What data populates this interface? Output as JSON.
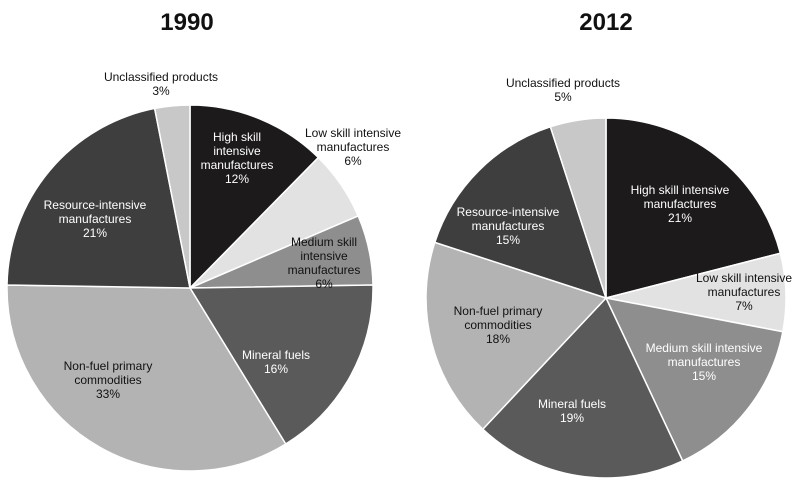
{
  "chart_data": [
    {
      "type": "pie",
      "title": "1990",
      "slices": [
        {
          "label": [
            "High skill",
            "intensive",
            "manufactures"
          ],
          "value": 12,
          "value_label": "12%",
          "color": "#1c1a1b",
          "text_color": "#ffffff"
        },
        {
          "label": [
            "Low skill intensive",
            "manufactures"
          ],
          "value": 6,
          "value_label": "6%",
          "color": "#e2e2e2",
          "text_color": "#111111"
        },
        {
          "label": [
            "Medium skill",
            "intensive",
            "manufactures"
          ],
          "value": 6,
          "value_label": "6%",
          "color": "#8e8e8e",
          "text_color": "#111111"
        },
        {
          "label": [
            "Mineral fuels"
          ],
          "value": 16,
          "value_label": "16%",
          "color": "#5a5a5a",
          "text_color": "#ffffff"
        },
        {
          "label": [
            "Non-fuel primary",
            "commodities"
          ],
          "value": 33,
          "value_label": "33%",
          "color": "#b3b3b3",
          "text_color": "#111111"
        },
        {
          "label": [
            "Resource-intensive",
            "manufactures"
          ],
          "value": 21,
          "value_label": "21%",
          "color": "#3e3e3e",
          "text_color": "#ffffff"
        },
        {
          "label": [
            "Unclassified products"
          ],
          "value": 3,
          "value_label": "3%",
          "color": "#c8c8c8",
          "text_color": "#111111"
        }
      ]
    },
    {
      "type": "pie",
      "title": "2012",
      "slices": [
        {
          "label": [
            "High skill intensive",
            "manufactures"
          ],
          "value": 21,
          "value_label": "21%",
          "color": "#1c1a1b",
          "text_color": "#ffffff"
        },
        {
          "label": [
            "Low skill intensive",
            "manufactures"
          ],
          "value": 7,
          "value_label": "7%",
          "color": "#e2e2e2",
          "text_color": "#111111"
        },
        {
          "label": [
            "Medium skill intensive",
            "manufactures"
          ],
          "value": 15,
          "value_label": "15%",
          "color": "#8e8e8e",
          "text_color": "#ffffff"
        },
        {
          "label": [
            "Mineral fuels"
          ],
          "value": 19,
          "value_label": "19%",
          "color": "#5a5a5a",
          "text_color": "#ffffff"
        },
        {
          "label": [
            "Non-fuel primary",
            "commodities"
          ],
          "value": 18,
          "value_label": "18%",
          "color": "#b3b3b3",
          "text_color": "#111111"
        },
        {
          "label": [
            "Resource-intensive",
            "manufactures"
          ],
          "value": 15,
          "value_label": "15%",
          "color": "#3e3e3e",
          "text_color": "#ffffff"
        },
        {
          "label": [
            "Unclassified products"
          ],
          "value": 5,
          "value_label": "5%",
          "color": "#c8c8c8",
          "text_color": "#111111"
        }
      ]
    }
  ]
}
